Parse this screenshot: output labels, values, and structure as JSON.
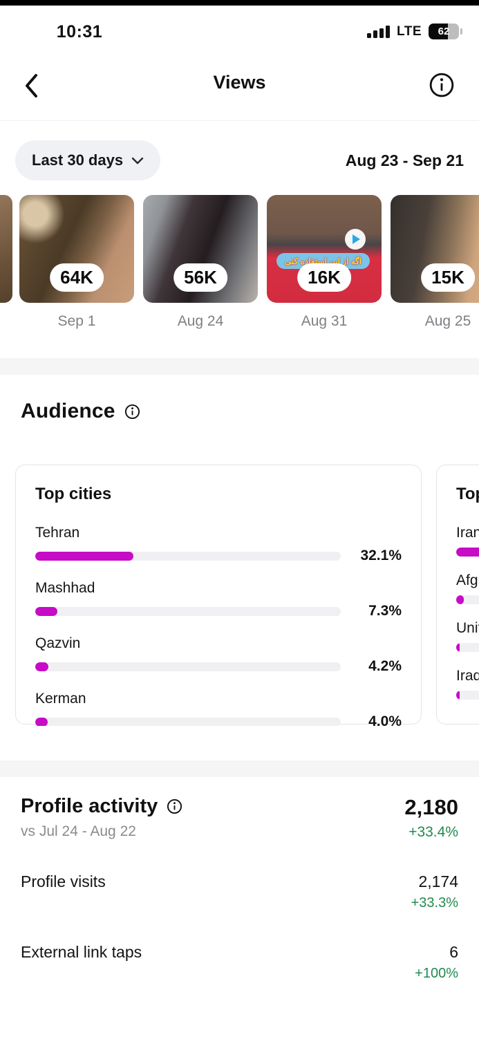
{
  "status_bar": {
    "time": "10:31",
    "network": "LTE",
    "battery_level": "62",
    "signal_bars": 4
  },
  "header": {
    "title": "Views"
  },
  "filter": {
    "range_label": "Last 30 days",
    "date_range": "Aug 23 - Sep 21"
  },
  "top_posts": [
    {
      "views": "64K",
      "date": "Sep 1"
    },
    {
      "views": "56K",
      "date": "Aug 24"
    },
    {
      "views": "16K",
      "date": "Aug 31",
      "caption_line1": "اگه از این استفاده کنی",
      "caption_line2": "باید ... کنی..",
      "has_play_icon": true
    },
    {
      "views": "15K",
      "date": "Aug 25"
    }
  ],
  "audience": {
    "title": "Audience",
    "top_cities": {
      "title": "Top cities",
      "rows": [
        {
          "label": "Tehran",
          "pct": "32.1%",
          "value": 32.1
        },
        {
          "label": "Mashhad",
          "pct": "7.3%",
          "value": 7.3
        },
        {
          "label": "Qazvin",
          "pct": "4.2%",
          "value": 4.2
        },
        {
          "label": "Kerman",
          "pct": "4.0%",
          "value": 4.0
        }
      ]
    },
    "top_countries": {
      "title_visible": "Top countries",
      "rows": [
        {
          "label": "Iran",
          "bar_pct": 46
        },
        {
          "label": "Afghanistan",
          "bar_pct": 4.5
        },
        {
          "label": "United",
          "bar_pct": 2
        },
        {
          "label": "Iraq",
          "bar_pct": 2
        }
      ]
    }
  },
  "profile_activity": {
    "title": "Profile activity",
    "comparison": "vs Jul 24 - Aug 22",
    "total": "2,180",
    "total_change": "+33.4%",
    "rows": [
      {
        "label": "Profile visits",
        "value": "2,174",
        "change": "+33.3%"
      },
      {
        "label": "External link taps",
        "value": "6",
        "change": "+100%"
      }
    ]
  },
  "colors": {
    "accent": "#c60cc6",
    "positive_green": "#218a4f"
  }
}
